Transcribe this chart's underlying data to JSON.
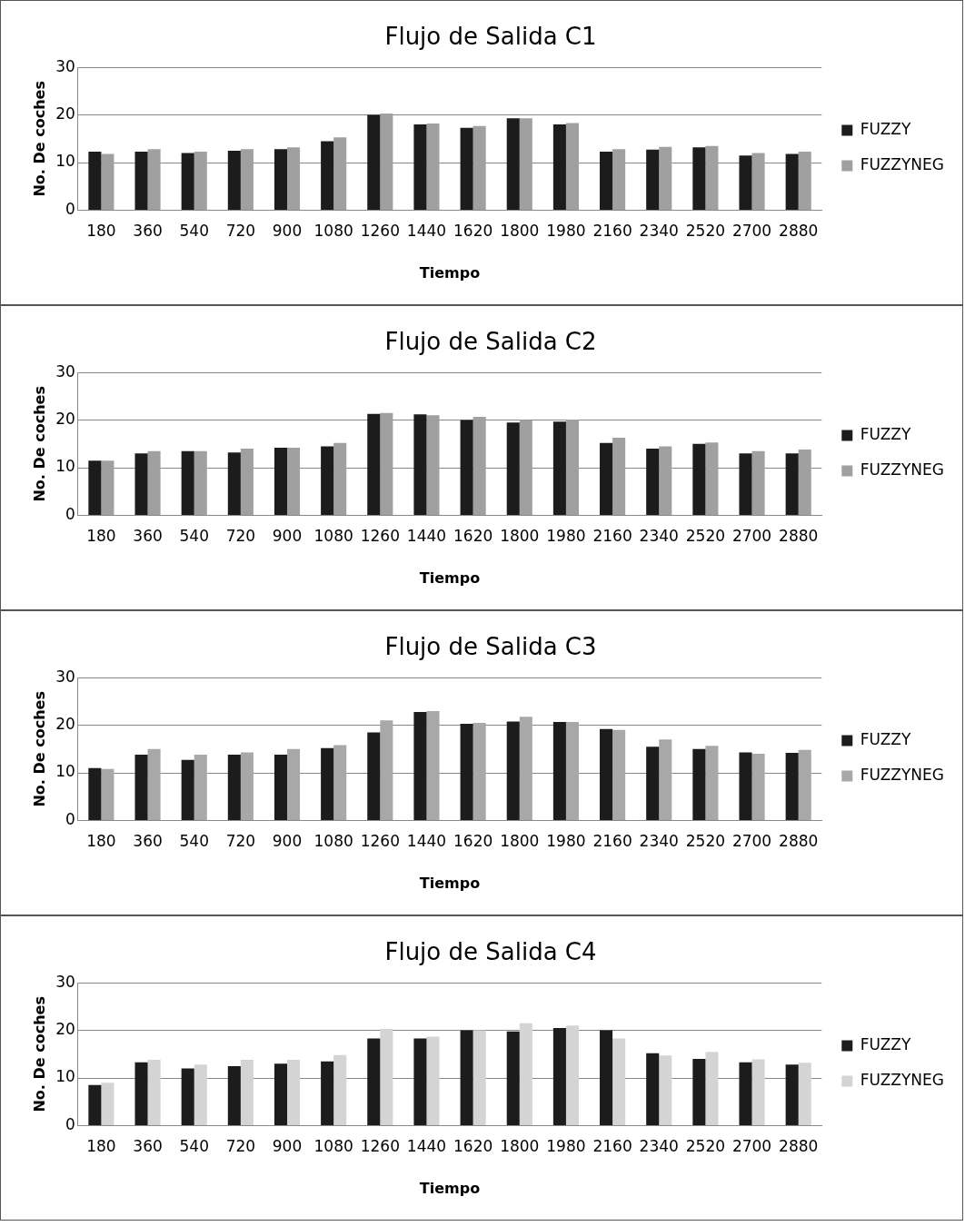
{
  "chart_data": [
    {
      "type": "bar",
      "title": "Flujo de Salida C1",
      "xlabel": "Tiempo",
      "ylabel": "No. De coches",
      "categories": [
        "180",
        "360",
        "540",
        "720",
        "900",
        "1080",
        "1260",
        "1440",
        "1620",
        "1800",
        "1980",
        "2160",
        "2340",
        "2520",
        "2700",
        "2880"
      ],
      "series": [
        {
          "name": "FUZZY",
          "color": "#1c1c1c",
          "values": [
            12.3,
            12.3,
            12,
            12.5,
            12.8,
            14.5,
            20,
            18,
            17.3,
            19.3,
            18,
            12.3,
            12.7,
            13.2,
            11.5,
            11.8
          ]
        },
        {
          "name": "FUZZYNEG",
          "color": "#a0a0a0",
          "values": [
            11.8,
            12.8,
            12.3,
            12.8,
            13.2,
            15.3,
            20.3,
            18.2,
            17.7,
            19.3,
            18.3,
            12.8,
            13.3,
            13.5,
            12,
            12.3
          ]
        }
      ],
      "ylim": [
        0,
        30
      ],
      "yticks": [
        0,
        10,
        20,
        30
      ],
      "grid": "y",
      "legend": "right"
    },
    {
      "type": "bar",
      "title": "Flujo de Salida C2",
      "xlabel": "Tiempo",
      "ylabel": "No. De coches",
      "categories": [
        "180",
        "360",
        "540",
        "720",
        "900",
        "1080",
        "1260",
        "1440",
        "1620",
        "1800",
        "1980",
        "2160",
        "2340",
        "2520",
        "2700",
        "2880"
      ],
      "series": [
        {
          "name": "FUZZY",
          "color": "#1c1c1c",
          "values": [
            11.5,
            13,
            13.5,
            13.2,
            14.2,
            14.5,
            21.3,
            21.2,
            20,
            19.5,
            19.7,
            15.2,
            14,
            15,
            13,
            13
          ]
        },
        {
          "name": "FUZZYNEG",
          "color": "#a0a0a0",
          "values": [
            11.5,
            13.5,
            13.5,
            14,
            14.2,
            15.2,
            21.5,
            21,
            20.7,
            20,
            20.1,
            16.3,
            14.5,
            15.3,
            13.5,
            13.8
          ]
        }
      ],
      "ylim": [
        0,
        30
      ],
      "yticks": [
        0,
        10,
        20,
        30
      ],
      "grid": "y",
      "legend": "right"
    },
    {
      "type": "bar",
      "title": "Flujo de Salida C3",
      "xlabel": "Tiempo",
      "ylabel": "No. De coches",
      "categories": [
        "180",
        "360",
        "540",
        "720",
        "900",
        "1080",
        "1260",
        "1440",
        "1620",
        "1800",
        "1980",
        "2160",
        "2340",
        "2520",
        "2700",
        "2880"
      ],
      "series": [
        {
          "name": "FUZZY",
          "color": "#1c1c1c",
          "values": [
            11,
            13.8,
            12.7,
            13.8,
            13.8,
            15.2,
            18.5,
            22.8,
            20.3,
            20.8,
            20.7,
            19.2,
            15.5,
            15,
            14.3,
            14.2
          ]
        },
        {
          "name": "FUZZYNEG",
          "color": "#a8a8a8",
          "values": [
            10.8,
            15,
            13.8,
            14.3,
            15,
            15.8,
            21,
            23,
            20.5,
            21.8,
            20.7,
            19,
            17,
            15.7,
            14,
            14.8
          ]
        }
      ],
      "ylim": [
        0,
        30
      ],
      "yticks": [
        0,
        10,
        20,
        30
      ],
      "grid": "y",
      "legend": "right"
    },
    {
      "type": "bar",
      "title": "Flujo de Salida C4",
      "xlabel": "Tiempo",
      "ylabel": "No. De coches",
      "categories": [
        "180",
        "360",
        "540",
        "720",
        "900",
        "1080",
        "1260",
        "1440",
        "1620",
        "1800",
        "1980",
        "2160",
        "2340",
        "2520",
        "2700",
        "2880"
      ],
      "series": [
        {
          "name": "FUZZY",
          "color": "#1c1c1c",
          "values": [
            8.5,
            13.3,
            12,
            12.5,
            13,
            13.5,
            18.3,
            18.3,
            20,
            19.8,
            20.5,
            20,
            15.2,
            14,
            13.3,
            12.8
          ]
        },
        {
          "name": "FUZZYNEG",
          "color": "#d4d4d4",
          "values": [
            9,
            13.8,
            12.8,
            13.8,
            13.8,
            14.8,
            20.3,
            18.7,
            20,
            21.5,
            21,
            18.3,
            14.7,
            15.5,
            13.9,
            13.2
          ]
        }
      ],
      "ylim": [
        0,
        30
      ],
      "yticks": [
        0,
        10,
        20,
        30
      ],
      "grid": "y",
      "legend": "right"
    }
  ]
}
